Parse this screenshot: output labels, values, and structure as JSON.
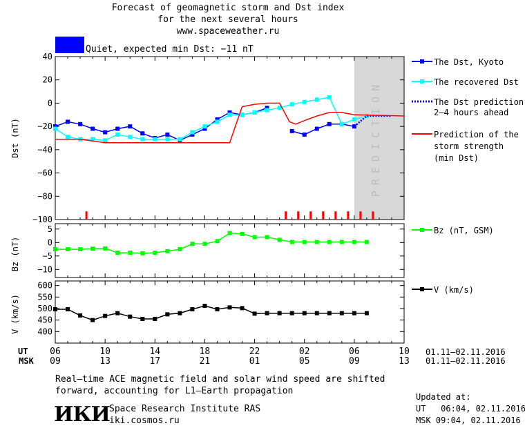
{
  "header": {
    "line1": "Forecast of geomagnetic storm and Dst index",
    "line2": "for the next several hours",
    "line3": "www.spaceweather.ru"
  },
  "status": {
    "text": "Quiet, expected min Dst: −11 nT",
    "color": "#0000ff"
  },
  "prediction_label": "PREDICTION",
  "colors": {
    "dst_kyoto": "#0000ff",
    "dst_recovered": "#00ffff",
    "dst_prediction": "#0000ff",
    "storm_strength": "#ff0000",
    "bz": "#00ff00",
    "v": "#000000",
    "prediction_zone": "#d8d8d8"
  },
  "legend": {
    "dst_kyoto": "The Dst, Kyoto",
    "dst_recovered": "The recovered Dst",
    "dst_prediction_1": "The Dst prediction",
    "dst_prediction_2": "2–4 hours ahead",
    "storm_1": "Prediction of the",
    "storm_2": "storm strength",
    "storm_3": "(min Dst)",
    "bz": "Bz (nT, GSM)",
    "v": "V (km/s)"
  },
  "axes": {
    "ut_label": "UT",
    "msk_label": "MSK",
    "ut_ticks": [
      "06",
      "10",
      "14",
      "18",
      "22",
      "02",
      "06",
      "10"
    ],
    "msk_ticks": [
      "09",
      "13",
      "17",
      "21",
      "01",
      "05",
      "09",
      "13"
    ],
    "ut_dates": "01.11–02.11.2016",
    "msk_dates": "01.11–02.11.2016"
  },
  "chart_data": [
    {
      "type": "line",
      "ylabel": "Dst (nT)",
      "ylim": [
        -100,
        40
      ],
      "yticks": [
        40,
        20,
        0,
        -20,
        -40,
        -60,
        -80,
        -100
      ],
      "xlim_hours": [
        6,
        34
      ],
      "prediction_zone_hours": [
        30.0,
        34
      ],
      "series": [
        {
          "name": "The Dst, Kyoto",
          "x": [
            6,
            7,
            8,
            9,
            10,
            11,
            12,
            13,
            14,
            15,
            16,
            17,
            18,
            19,
            20,
            21,
            22,
            23,
            25,
            26,
            27,
            28,
            29,
            30
          ],
          "y": [
            -20,
            -16,
            -18,
            -22,
            -25,
            -22,
            -20,
            -26,
            -30,
            -27,
            -32,
            -27,
            -22,
            -14,
            -8,
            -10,
            -8,
            -4,
            -24,
            -27,
            -22,
            -18,
            -18,
            -20
          ]
        },
        {
          "name": "The recovered Dst",
          "x": [
            6,
            7,
            8,
            9,
            10,
            11,
            12,
            13,
            14,
            15,
            16,
            17,
            18,
            19,
            20,
            21,
            22,
            23,
            24,
            25,
            26,
            27,
            28,
            29,
            30,
            31
          ],
          "y": [
            -22,
            -29,
            -31,
            -31,
            -32,
            -27,
            -29,
            -31,
            -31,
            -31,
            -31,
            -25,
            -20,
            -16,
            -10,
            -10,
            -8,
            -6,
            -4,
            -1,
            1,
            3,
            5,
            -18,
            -14,
            -11
          ]
        },
        {
          "name": "The Dst prediction",
          "x": [
            30,
            31,
            32,
            33
          ],
          "y": [
            -20,
            -11,
            -11,
            -11
          ]
        },
        {
          "name": "Prediction of the storm strength",
          "x": [
            6,
            8,
            10,
            20,
            21,
            22,
            23,
            24,
            24.8,
            25.3,
            26,
            27,
            28,
            29,
            30,
            34
          ],
          "y": [
            -31,
            -31,
            -34,
            -34,
            -3,
            -1,
            0,
            0,
            -16,
            -18,
            -15,
            -11,
            -8,
            -8,
            -10,
            -11
          ]
        }
      ],
      "event_markers_hours": [
        8.5,
        24.5,
        25.5,
        26.5,
        27.5,
        28.5,
        29.5,
        30.5,
        31.5
      ]
    },
    {
      "type": "line",
      "ylabel": "Bz (nT)",
      "ylim": [
        -13,
        7
      ],
      "yticks": [
        5,
        0,
        -5,
        -10
      ],
      "series": [
        {
          "name": "Bz (nT, GSM)",
          "x": [
            6,
            7,
            8,
            9,
            10,
            11,
            12,
            13,
            14,
            15,
            16,
            17,
            18,
            19,
            20,
            21,
            22,
            23,
            24,
            25,
            26,
            27,
            28,
            29,
            30,
            31
          ],
          "y": [
            -2.5,
            -2.5,
            -2.5,
            -2.3,
            -2.2,
            -3.8,
            -3.8,
            -4.0,
            -3.8,
            -3.2,
            -2.5,
            -0.5,
            -0.5,
            0.5,
            3.5,
            3.2,
            2.0,
            2.0,
            1.0,
            0.2,
            0.2,
            0.2,
            0.2,
            0.2,
            0.2,
            0.2
          ]
        }
      ]
    },
    {
      "type": "line",
      "ylabel": "V (km/s)",
      "ylim": [
        350,
        620
      ],
      "yticks": [
        600,
        550,
        500,
        450,
        400
      ],
      "series": [
        {
          "name": "V (km/s)",
          "x": [
            6,
            7,
            8,
            9,
            10,
            11,
            12,
            13,
            14,
            15,
            16,
            17,
            18,
            19,
            20,
            21,
            22,
            23,
            24,
            25,
            26,
            27,
            28,
            29,
            30,
            31
          ],
          "y": [
            497,
            497,
            470,
            450,
            468,
            480,
            465,
            455,
            455,
            475,
            480,
            497,
            512,
            497,
            505,
            502,
            478,
            480,
            480,
            480,
            480,
            480,
            480,
            480,
            480,
            480
          ]
        }
      ]
    }
  ],
  "footer": {
    "note_1": "Real–time ACE magnetic field and solar wind speed are shifted",
    "note_2": "forward, accounting for L1–Earth propagation",
    "logo": "ИКИ",
    "institute": "Space Research Institute RAS",
    "site": "iki.cosmos.ru",
    "updated_label": "Updated at:",
    "updated_ut": "UT   06:04, 02.11.2016",
    "updated_msk": "MSK 09:04, 02.11.2016"
  }
}
